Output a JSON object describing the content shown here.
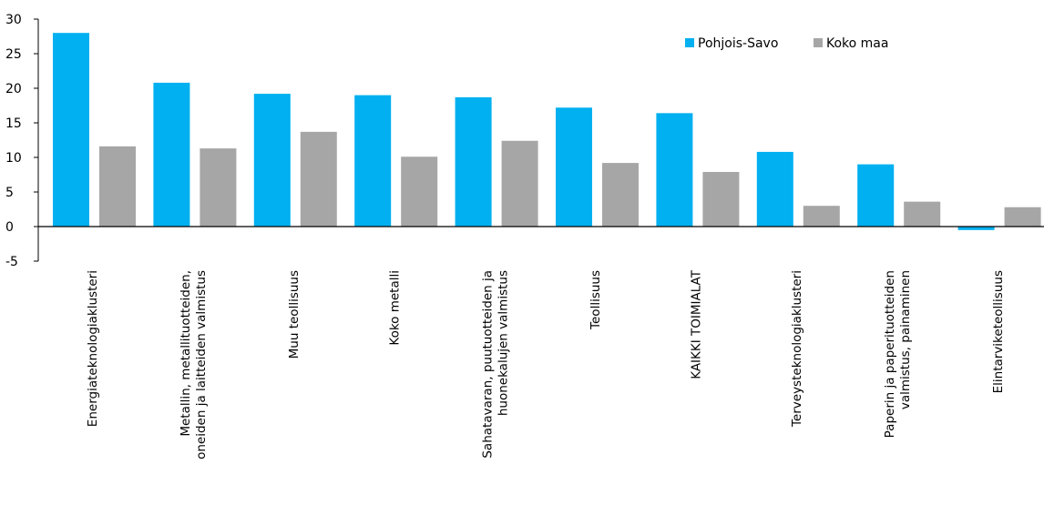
{
  "chart_data": {
    "type": "bar",
    "title": "",
    "xlabel": "",
    "ylabel": "",
    "ylim": [
      -5,
      30
    ],
    "yticks": [
      -5,
      0,
      5,
      10,
      15,
      20,
      25,
      30
    ],
    "grid": false,
    "legend_position": "top-right",
    "categories": [
      [
        "Energiateknologiaklusteri"
      ],
      [
        "Metallin, metallituotteiden,",
        "oneiden ja laitteiden valmistus"
      ],
      [
        "Muu teollisuus"
      ],
      [
        "Koko metalli"
      ],
      [
        "Sahatavaran, puutuotteiden ja",
        "huonekalujen valmistus"
      ],
      [
        "Teollisuus"
      ],
      [
        "KAIKKI TOIMIALAT"
      ],
      [
        "Terveysteknologiaklusteri"
      ],
      [
        "Paperin ja paperituotteiden",
        "valmistus, painaminen"
      ],
      [
        "Elintarviketeollisuus"
      ]
    ],
    "series": [
      {
        "name": "Pohjois-Savo",
        "color": "#00B0F0",
        "values": [
          28.0,
          20.8,
          19.2,
          19.0,
          18.7,
          17.2,
          16.4,
          10.8,
          9.0,
          -0.5
        ]
      },
      {
        "name": "Koko maa",
        "color": "#A6A6A6",
        "values": [
          11.6,
          11.3,
          13.7,
          10.1,
          12.4,
          9.2,
          7.9,
          3.0,
          3.6,
          2.8
        ]
      }
    ]
  }
}
